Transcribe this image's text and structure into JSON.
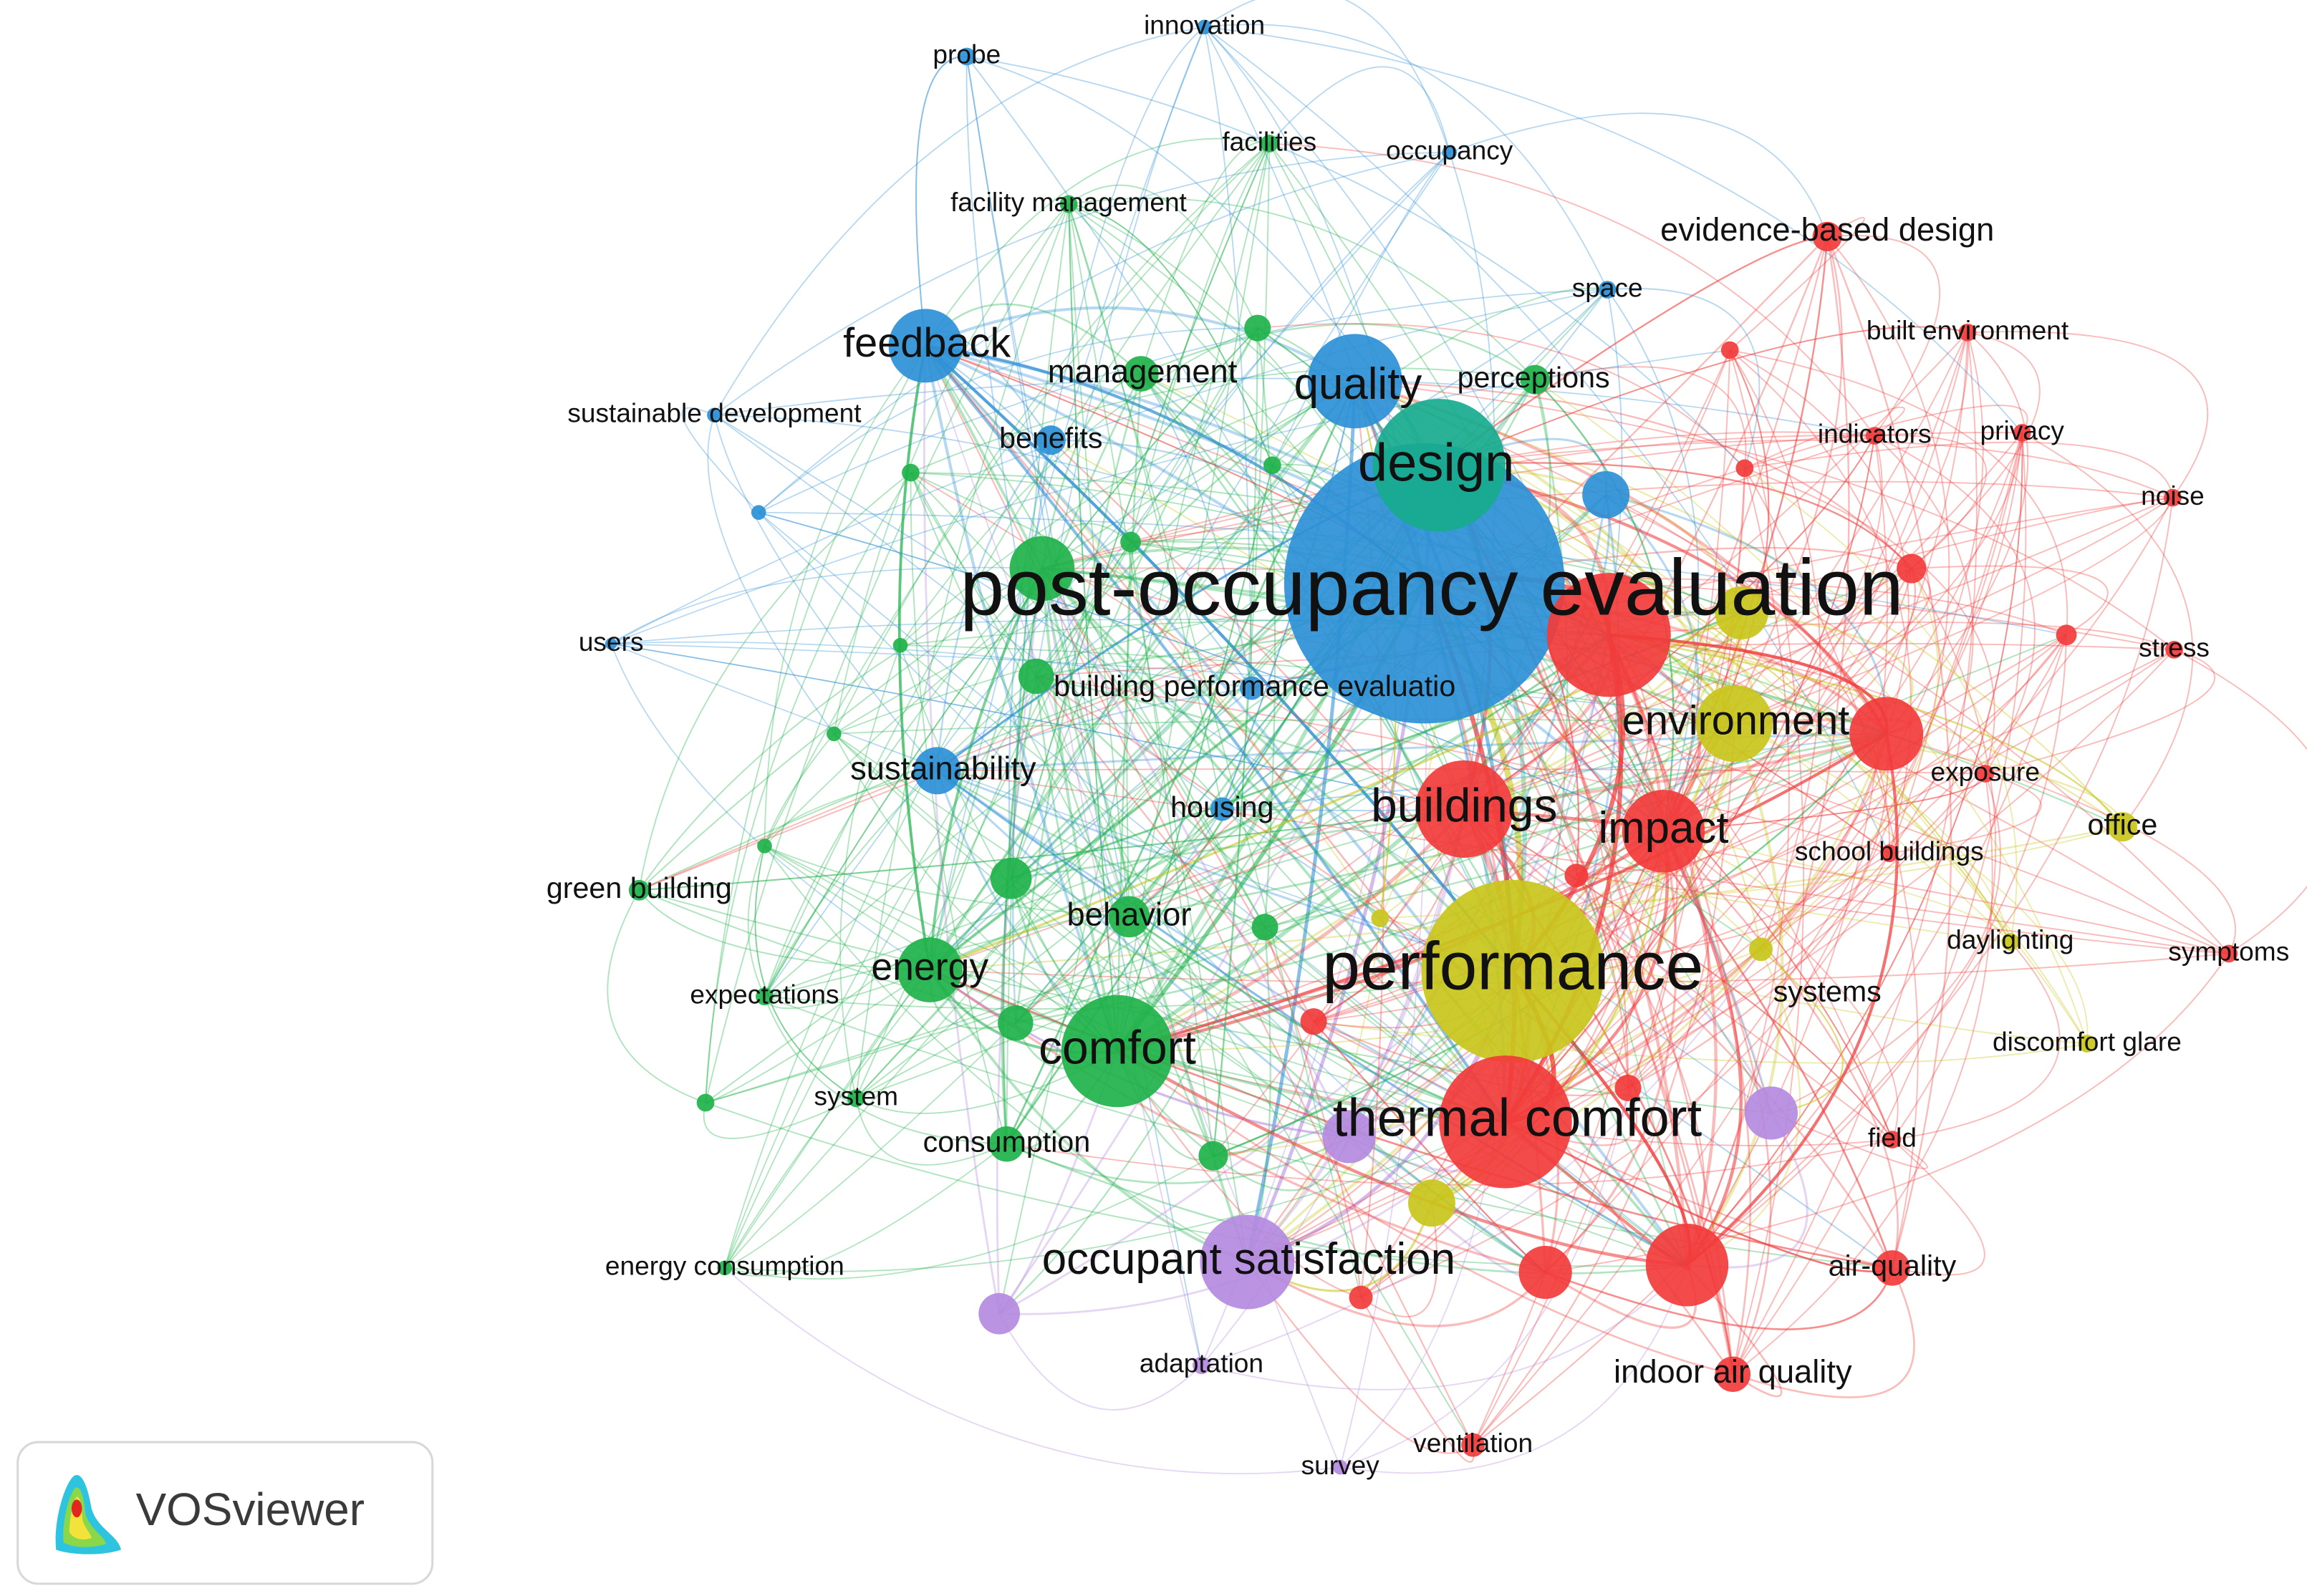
{
  "nodes": [
    {
      "label": "post-occupancy evaluation"
    },
    {
      "label": "design"
    },
    {
      "label": "quality"
    },
    {
      "label": "feedback"
    },
    {
      "label": "performance"
    },
    {
      "label": "thermal comfort"
    },
    {
      "label": "occupant satisfaction"
    },
    {
      "label": "comfort"
    },
    {
      "label": "buildings"
    },
    {
      "label": "impact"
    },
    {
      "label": "environment"
    },
    {
      "label": "energy"
    },
    {
      "label": "sustainability"
    },
    {
      "label": "management"
    },
    {
      "label": "benefits"
    },
    {
      "label": "perceptions"
    },
    {
      "label": "behavior"
    },
    {
      "label": "building performance evaluatio"
    },
    {
      "label": "housing"
    },
    {
      "label": "consumption"
    },
    {
      "label": "green building"
    },
    {
      "label": "expectations"
    },
    {
      "label": "system"
    },
    {
      "label": "energy consumption"
    },
    {
      "label": "users"
    },
    {
      "label": "sustainable development"
    },
    {
      "label": "probe"
    },
    {
      "label": "innovation"
    },
    {
      "label": "facility management"
    },
    {
      "label": "facilities"
    },
    {
      "label": "occupancy"
    },
    {
      "label": "evidence-based design"
    },
    {
      "label": "space"
    },
    {
      "label": "built environment"
    },
    {
      "label": "indicators"
    },
    {
      "label": "privacy"
    },
    {
      "label": "noise"
    },
    {
      "label": "stress"
    },
    {
      "label": "exposure"
    },
    {
      "label": "office"
    },
    {
      "label": "school buildings"
    },
    {
      "label": "daylighting"
    },
    {
      "label": "symptoms"
    },
    {
      "label": "systems"
    },
    {
      "label": "discomfort glare"
    },
    {
      "label": "field"
    },
    {
      "label": "air-quality"
    },
    {
      "label": "indoor air quality"
    },
    {
      "label": "ventilation"
    },
    {
      "label": "survey"
    },
    {
      "label": "adaptation"
    }
  ],
  "logo": {
    "text": "VOSviewer"
  }
}
